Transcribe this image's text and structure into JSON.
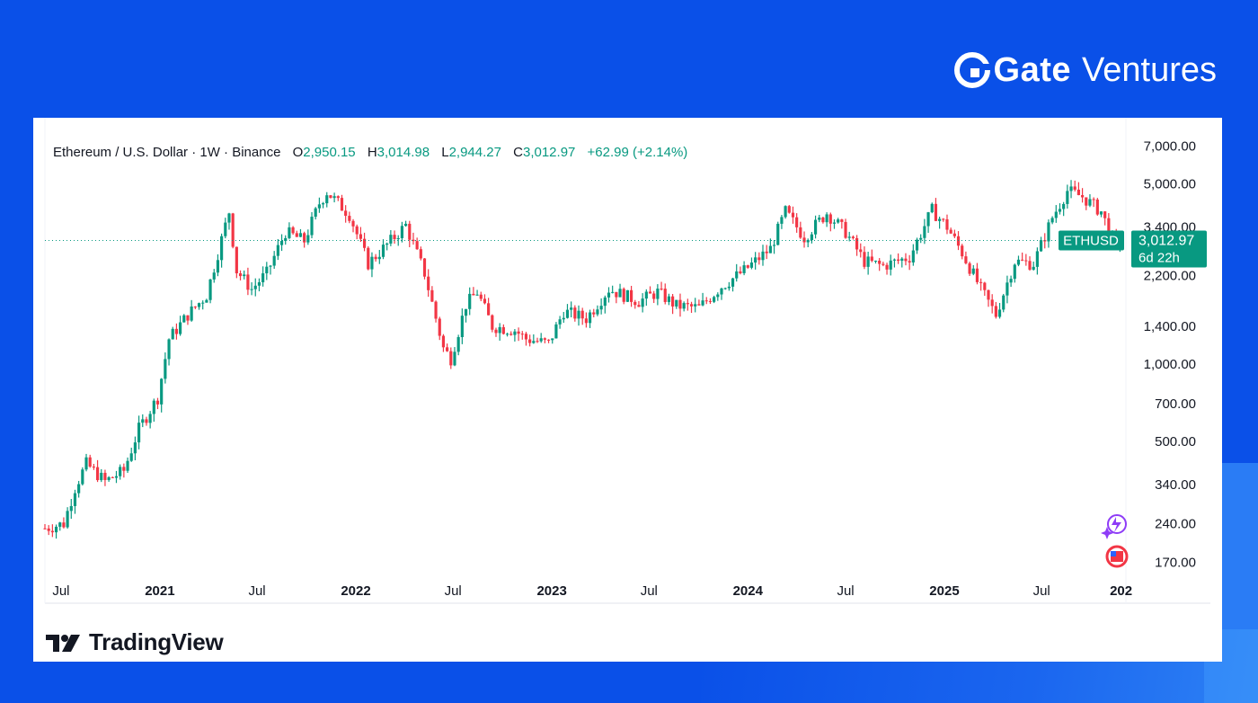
{
  "brand": {
    "name": "Gate",
    "sub": "Ventures"
  },
  "legend": {
    "symbol": "Ethereum / U.S. Dollar · 1W · Binance",
    "o_key": "O",
    "o_val": "2,950.15",
    "h_key": "H",
    "h_val": "3,014.98",
    "l_key": "L",
    "l_val": "2,944.27",
    "c_key": "C",
    "c_val": "3,012.97",
    "change": "+62.99 (+2.14%)"
  },
  "footer": {
    "logo_text": "TradingView"
  },
  "colors": {
    "up": "#089981",
    "down": "#f23645",
    "page_bg": "#0a50e8"
  },
  "chart_data": {
    "type": "candlestick",
    "scale": "log",
    "ylim": [
      150,
      7800
    ],
    "y_ticks": [
      {
        "label": "7,000.00",
        "value": 7000
      },
      {
        "label": "5,000.00",
        "value": 5000
      },
      {
        "label": "3,400.00",
        "value": 3400
      },
      {
        "label": "2,200.00",
        "value": 2200
      },
      {
        "label": "1,400.00",
        "value": 1400
      },
      {
        "label": "1,000.00",
        "value": 1000
      },
      {
        "label": "700.00",
        "value": 700
      },
      {
        "label": "500.00",
        "value": 500
      },
      {
        "label": "340.00",
        "value": 340
      },
      {
        "label": "240.00",
        "value": 240
      },
      {
        "label": "170.00",
        "value": 170
      }
    ],
    "x_range": [
      "2020-06-01",
      "2025-11-30"
    ],
    "x_ticks": [
      {
        "label": "Jul",
        "date": "2020-07-01",
        "bold": false
      },
      {
        "label": "2021",
        "date": "2021-01-01",
        "bold": true
      },
      {
        "label": "Jul",
        "date": "2021-07-01",
        "bold": false
      },
      {
        "label": "2022",
        "date": "2022-01-01",
        "bold": true
      },
      {
        "label": "Jul",
        "date": "2022-07-01",
        "bold": false
      },
      {
        "label": "2023",
        "date": "2023-01-01",
        "bold": true
      },
      {
        "label": "Jul",
        "date": "2023-07-01",
        "bold": false
      },
      {
        "label": "2024",
        "date": "2024-01-01",
        "bold": true
      },
      {
        "label": "Jul",
        "date": "2024-07-01",
        "bold": false
      },
      {
        "label": "2025",
        "date": "2025-01-01",
        "bold": true
      },
      {
        "label": "Jul",
        "date": "2025-07-01",
        "bold": false
      },
      {
        "label": "202",
        "date": "2025-11-26",
        "bold": true
      }
    ],
    "current_price": {
      "value": 3012.97,
      "label": "3,012.97",
      "countdown": "6d 22h",
      "symbol_tag": "ETHUSD"
    },
    "series": [
      {
        "name": "ETHUSD",
        "price_path": [
          [
            "2020-06-01",
            230
          ],
          [
            "2020-07-06",
            240
          ],
          [
            "2020-07-27",
            330
          ],
          [
            "2020-08-17",
            410
          ],
          [
            "2020-09-21",
            350
          ],
          [
            "2020-10-26",
            385
          ],
          [
            "2020-11-23",
            560
          ],
          [
            "2020-12-28",
            740
          ],
          [
            "2021-01-18",
            1250
          ],
          [
            "2021-02-22",
            1550
          ],
          [
            "2021-03-29",
            1850
          ],
          [
            "2021-05-10",
            3900
          ],
          [
            "2021-05-24",
            2300
          ],
          [
            "2021-06-21",
            1950
          ],
          [
            "2021-07-19",
            2250
          ],
          [
            "2021-08-23",
            3250
          ],
          [
            "2021-09-27",
            3000
          ],
          [
            "2021-10-25",
            4200
          ],
          [
            "2021-11-08",
            4650
          ],
          [
            "2021-12-20",
            3800
          ],
          [
            "2022-01-24",
            2450
          ],
          [
            "2022-02-28",
            2900
          ],
          [
            "2022-04-04",
            3450
          ],
          [
            "2022-05-09",
            2250
          ],
          [
            "2022-06-13",
            1150
          ],
          [
            "2022-06-27",
            1050
          ],
          [
            "2022-07-25",
            1700
          ],
          [
            "2022-08-15",
            1900
          ],
          [
            "2022-09-12",
            1400
          ],
          [
            "2022-10-24",
            1350
          ],
          [
            "2022-11-14",
            1250
          ],
          [
            "2022-12-26",
            1200
          ],
          [
            "2023-01-23",
            1600
          ],
          [
            "2023-03-06",
            1500
          ],
          [
            "2023-04-17",
            1950
          ],
          [
            "2023-06-12",
            1750
          ],
          [
            "2023-07-17",
            1900
          ],
          [
            "2023-08-21",
            1680
          ],
          [
            "2023-10-02",
            1650
          ],
          [
            "2023-11-13",
            2000
          ],
          [
            "2023-12-25",
            2300
          ],
          [
            "2024-02-12",
            2800
          ],
          [
            "2024-03-11",
            3900
          ],
          [
            "2024-04-15",
            3100
          ],
          [
            "2024-05-27",
            3850
          ],
          [
            "2024-07-01",
            3250
          ],
          [
            "2024-08-05",
            2500
          ],
          [
            "2024-09-09",
            2400
          ],
          [
            "2024-10-28",
            2600
          ],
          [
            "2024-12-09",
            3950
          ],
          [
            "2025-01-06",
            3400
          ],
          [
            "2025-02-03",
            2700
          ],
          [
            "2025-03-10",
            1950
          ],
          [
            "2025-04-07",
            1550
          ],
          [
            "2025-05-12",
            2500
          ],
          [
            "2025-06-16",
            2450
          ],
          [
            "2025-07-21",
            3700
          ],
          [
            "2025-08-18",
            4700
          ],
          [
            "2025-09-15",
            4450
          ],
          [
            "2025-10-20",
            3900
          ],
          [
            "2025-11-17",
            2800
          ],
          [
            "2025-11-24",
            3013
          ]
        ]
      }
    ]
  }
}
